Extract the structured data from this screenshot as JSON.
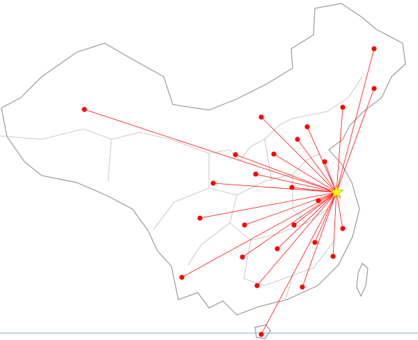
{
  "map": {
    "colors": {
      "line": "#ff0000",
      "point": "#ff0000",
      "origin_star": "#ffff00",
      "origin_star_stroke": "#d4a000",
      "border": "#999999",
      "baseline": "#7fb3b8"
    },
    "origin": {
      "lon": 118.8,
      "lat": 35.03
    },
    "destinations": [
      {
        "lon": 123.46,
        "lat": 50.21
      },
      {
        "lon": 123.46,
        "lat": 46.01
      },
      {
        "lon": 87.6,
        "lat": 43.8
      },
      {
        "lon": 109.5,
        "lat": 42.99
      },
      {
        "lon": 115.19,
        "lat": 41.96
      },
      {
        "lon": 113.98,
        "lat": 40.63
      },
      {
        "lon": 119.58,
        "lat": 44.02
      },
      {
        "lon": 111.05,
        "lat": 39.08
      },
      {
        "lon": 106.31,
        "lat": 39.01
      },
      {
        "lon": 108.81,
        "lat": 36.95
      },
      {
        "lon": 113.29,
        "lat": 35.55
      },
      {
        "lon": 116.57,
        "lat": 34.15
      },
      {
        "lon": 117.34,
        "lat": 38.27
      },
      {
        "lon": 107.43,
        "lat": 31.57
      },
      {
        "lon": 113.55,
        "lat": 31.57
      },
      {
        "lon": 119.58,
        "lat": 31.2
      },
      {
        "lon": 103.55,
        "lat": 35.99
      },
      {
        "lon": 101.91,
        "lat": 32.3
      },
      {
        "lon": 99.67,
        "lat": 26.04
      },
      {
        "lon": 111.48,
        "lat": 29.06
      },
      {
        "lon": 116.13,
        "lat": 29.73
      },
      {
        "lon": 118.38,
        "lat": 28.25
      },
      {
        "lon": 107.17,
        "lat": 28.18
      },
      {
        "lon": 108.98,
        "lat": 25.16
      },
      {
        "lon": 114.58,
        "lat": 25.01
      },
      {
        "lon": 109.5,
        "lat": 20.0
      }
    ]
  }
}
